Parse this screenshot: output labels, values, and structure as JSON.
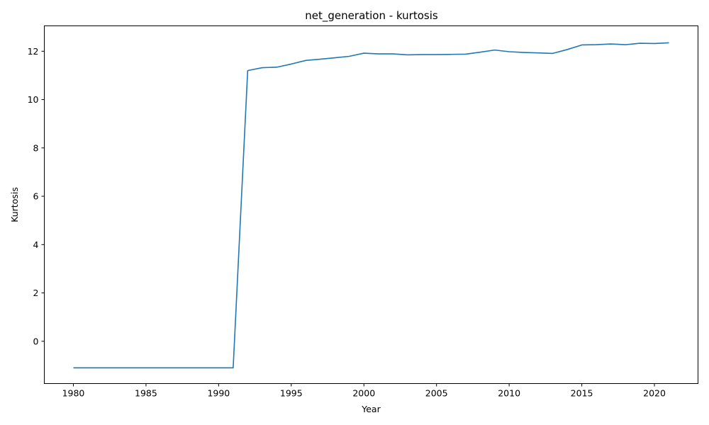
{
  "chart_data": {
    "type": "line",
    "title": "net_generation - kurtosis",
    "xlabel": "Year",
    "ylabel": "Kurtosis",
    "xlim": [
      1978,
      2023
    ],
    "ylim": [
      -1.75,
      13.05
    ],
    "xticks": [
      1980,
      1985,
      1990,
      1995,
      2000,
      2005,
      2010,
      2015,
      2020
    ],
    "yticks": [
      0,
      2,
      4,
      6,
      8,
      10,
      12
    ],
    "grid": false,
    "series": [
      {
        "color": "#1f77b4",
        "x": [
          1980,
          1981,
          1982,
          1983,
          1984,
          1985,
          1986,
          1987,
          1988,
          1989,
          1990,
          1991,
          1992,
          1993,
          1994,
          1995,
          1996,
          1997,
          1998,
          1999,
          2000,
          2001,
          2002,
          2003,
          2004,
          2005,
          2006,
          2007,
          2008,
          2009,
          2010,
          2011,
          2012,
          2013,
          2014,
          2015,
          2016,
          2017,
          2018,
          2019,
          2020,
          2021
        ],
        "y": [
          -1.1,
          -1.1,
          -1.1,
          -1.1,
          -1.1,
          -1.1,
          -1.1,
          -1.1,
          -1.1,
          -1.1,
          -1.1,
          -1.1,
          11.2,
          11.32,
          11.34,
          11.47,
          11.62,
          11.67,
          11.73,
          11.79,
          11.92,
          11.89,
          11.89,
          11.85,
          11.86,
          11.86,
          11.87,
          11.88,
          11.96,
          12.05,
          11.98,
          11.95,
          11.93,
          11.91,
          12.07,
          12.26,
          12.27,
          12.3,
          12.27,
          12.33,
          12.32,
          12.35
        ]
      }
    ]
  }
}
